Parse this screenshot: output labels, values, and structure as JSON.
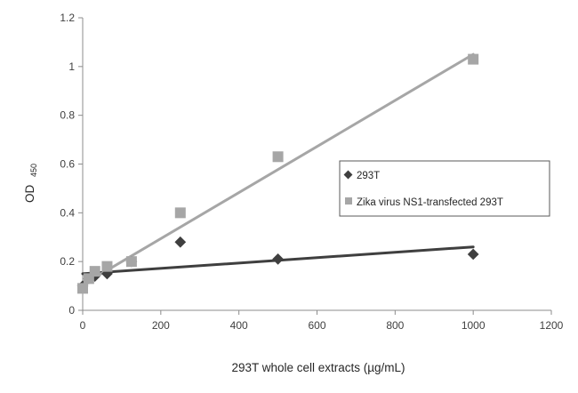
{
  "chart_data": {
    "type": "scatter",
    "title": "",
    "xlabel": "293T whole cell extracts (µg/mL)",
    "ylabel": "OD",
    "ylabel_subscript": "450",
    "xlim": [
      0,
      1200
    ],
    "ylim": [
      0,
      1.2
    ],
    "xticks": [
      0,
      200,
      400,
      600,
      800,
      1000,
      1200
    ],
    "yticks": [
      0,
      0.2,
      0.4,
      0.6,
      0.8,
      1.0,
      1.2
    ],
    "ytick_labels": [
      "0",
      "0.2",
      "0.4",
      "0.6",
      "0.8",
      "1",
      "1.2"
    ],
    "grid": false,
    "legend_position": "center-right",
    "series": [
      {
        "name": "293T",
        "marker": "diamond",
        "color": "#3f3f3f",
        "points": [
          {
            "x": 0,
            "y": 0.1
          },
          {
            "x": 15.6,
            "y": 0.13
          },
          {
            "x": 31.25,
            "y": 0.14
          },
          {
            "x": 62.5,
            "y": 0.15
          },
          {
            "x": 125,
            "y": 0.2
          },
          {
            "x": 250,
            "y": 0.28
          },
          {
            "x": 500,
            "y": 0.21
          },
          {
            "x": 1000,
            "y": 0.23
          }
        ],
        "trendline": {
          "x": [
            0,
            1000
          ],
          "y": [
            0.15,
            0.26
          ],
          "color": "#3f3f3f"
        }
      },
      {
        "name": "Zika virus NS1-transfected 293T",
        "marker": "square",
        "color": "#a6a6a6",
        "points": [
          {
            "x": 0,
            "y": 0.09
          },
          {
            "x": 15.6,
            "y": 0.13
          },
          {
            "x": 31.25,
            "y": 0.16
          },
          {
            "x": 62.5,
            "y": 0.18
          },
          {
            "x": 125,
            "y": 0.2
          },
          {
            "x": 250,
            "y": 0.4
          },
          {
            "x": 500,
            "y": 0.63
          },
          {
            "x": 1000,
            "y": 1.03
          }
        ],
        "trendline": {
          "x": [
            0,
            1000
          ],
          "y": [
            0.105,
            1.05
          ],
          "color": "#a6a6a6"
        }
      }
    ]
  }
}
